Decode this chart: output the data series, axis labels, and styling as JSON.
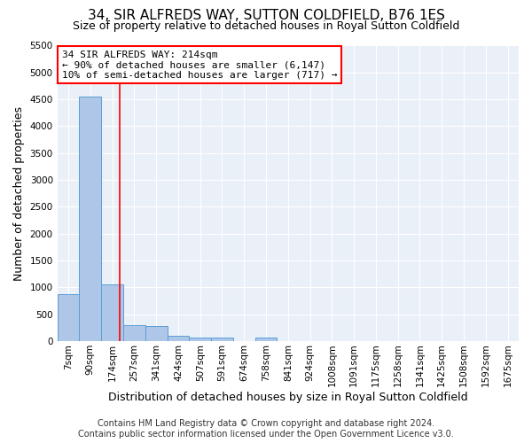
{
  "title": "34, SIR ALFREDS WAY, SUTTON COLDFIELD, B76 1ES",
  "subtitle": "Size of property relative to detached houses in Royal Sutton Coldfield",
  "xlabel": "Distribution of detached houses by size in Royal Sutton Coldfield",
  "ylabel": "Number of detached properties",
  "footer_line1": "Contains HM Land Registry data © Crown copyright and database right 2024.",
  "footer_line2": "Contains public sector information licensed under the Open Government Licence v3.0.",
  "categories": [
    "7sqm",
    "90sqm",
    "174sqm",
    "257sqm",
    "341sqm",
    "424sqm",
    "507sqm",
    "591sqm",
    "674sqm",
    "758sqm",
    "841sqm",
    "924sqm",
    "1008sqm",
    "1091sqm",
    "1175sqm",
    "1258sqm",
    "1341sqm",
    "1425sqm",
    "1508sqm",
    "1592sqm",
    "1675sqm"
  ],
  "values": [
    880,
    4550,
    1050,
    290,
    280,
    90,
    70,
    70,
    0,
    70,
    0,
    0,
    0,
    0,
    0,
    0,
    0,
    0,
    0,
    0,
    0
  ],
  "bar_color": "#aec6e8",
  "bar_edge_color": "#5a9fd4",
  "background_color": "#eaf0f8",
  "grid_color": "#ffffff",
  "ylim": [
    0,
    5500
  ],
  "yticks": [
    0,
    500,
    1000,
    1500,
    2000,
    2500,
    3000,
    3500,
    4000,
    4500,
    5000,
    5500
  ],
  "red_line_x": 2.35,
  "annotation_text": "34 SIR ALFREDS WAY: 214sqm\n← 90% of detached houses are smaller (6,147)\n10% of semi-detached houses are larger (717) →",
  "annotation_box_color": "red",
  "title_fontsize": 11,
  "subtitle_fontsize": 9,
  "xlabel_fontsize": 9,
  "ylabel_fontsize": 9,
  "tick_fontsize": 7.5,
  "footer_fontsize": 7,
  "ann_fontsize": 8
}
